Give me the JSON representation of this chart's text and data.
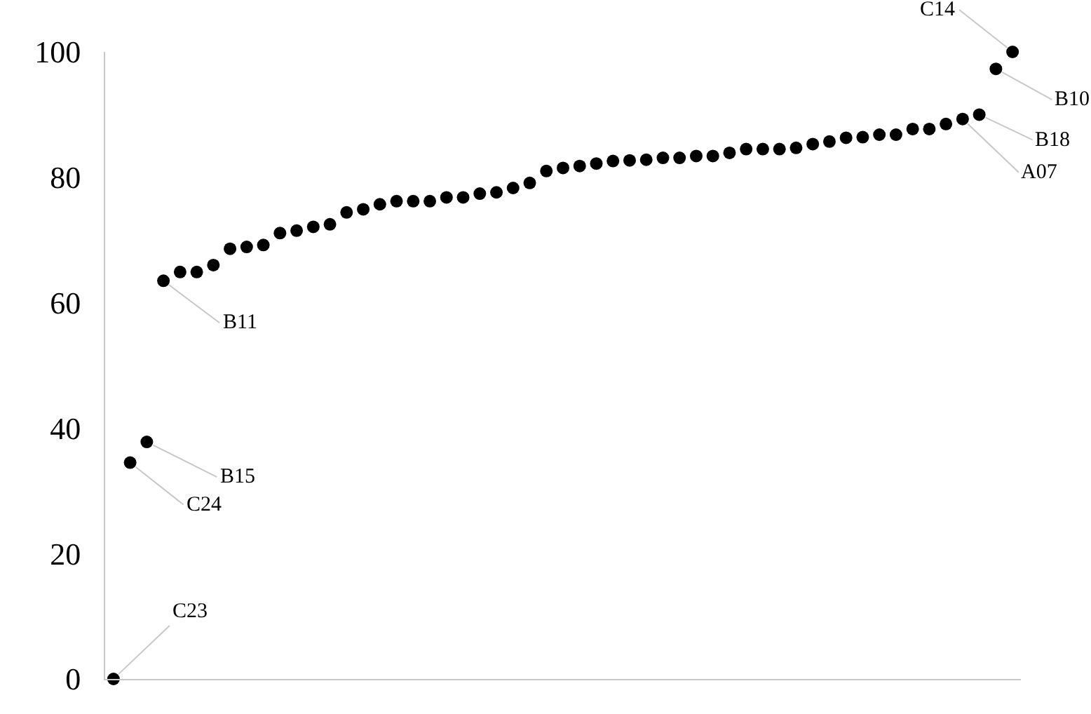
{
  "chart_data": {
    "type": "scatter",
    "categories": [
      null,
      null,
      null,
      null,
      null,
      null,
      null,
      null,
      null,
      null,
      null,
      null,
      null,
      null,
      null,
      null,
      null,
      null,
      null,
      null,
      null,
      null,
      null,
      null,
      null,
      null,
      null,
      null,
      null,
      null,
      null,
      null,
      null,
      null,
      null,
      null,
      null,
      null,
      null,
      null,
      null,
      null,
      null,
      null,
      null,
      null,
      null,
      null,
      null,
      null,
      null,
      null,
      null,
      null,
      null
    ],
    "series": [
      {
        "color": "#000000",
        "values": [
          0,
          34.5,
          37.8,
          63.5,
          64.9,
          64.9,
          66.0,
          68.6,
          68.9,
          69.2,
          71.1,
          71.5,
          72.1,
          72.5,
          74.4,
          74.9,
          75.7,
          76.2,
          76.2,
          76.2,
          76.8,
          76.8,
          77.4,
          77.6,
          78.3,
          79.1,
          81.0,
          81.5,
          81.8,
          82.2,
          82.6,
          82.7,
          82.8,
          83.1,
          83.1,
          83.4,
          83.4,
          83.9,
          84.5,
          84.5,
          84.5,
          84.7,
          85.3,
          85.7,
          86.3,
          86.4,
          86.8,
          86.8,
          87.7,
          87.7,
          88.5,
          89.3,
          90.0,
          97.3,
          100
        ]
      }
    ],
    "ylim": [
      0,
      100
    ],
    "yticks": [
      0,
      20,
      40,
      60,
      80,
      100
    ],
    "legend": false,
    "marker": "circle",
    "tick_labels": "y",
    "annotations": [
      "C23",
      "C24",
      "B15",
      "B11",
      "A07",
      "B18",
      "B10",
      "C14"
    ]
  }
}
